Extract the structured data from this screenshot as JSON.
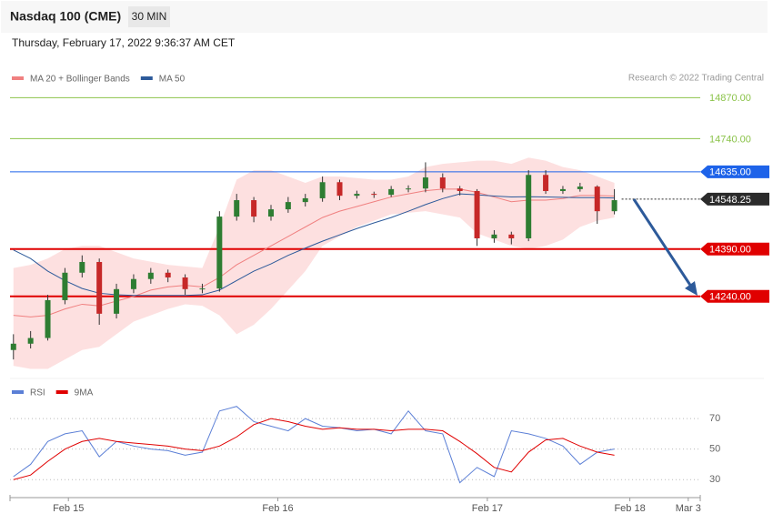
{
  "chart_data": [
    {
      "type": "candlestick",
      "title": "Nasdaq 100 (CME)",
      "interval": "30 MIN",
      "subtitle": "Thursday, February 17, 2022 9:36:37 AM CET",
      "credit": "Research © 2022 Trading Central",
      "up_color": "#2e7d32",
      "down_color": "#c62828",
      "xlim": [
        -0.2,
        40
      ],
      "ylim": [
        14000,
        14920
      ],
      "x": [
        0,
        1,
        2,
        3,
        4,
        5,
        6,
        7,
        8,
        9,
        10,
        11,
        12,
        13,
        14,
        15,
        16,
        17,
        18,
        19,
        20,
        21,
        22,
        23,
        24,
        25,
        26,
        27,
        28,
        29,
        30,
        31,
        32,
        33,
        34,
        35
      ],
      "ohlc": [
        [
          14070,
          14120,
          14040,
          14090
        ],
        [
          14090,
          14130,
          14075,
          14108
        ],
        [
          14108,
          14245,
          14100,
          14228
        ],
        [
          14228,
          14330,
          14215,
          14315
        ],
        [
          14315,
          14370,
          14300,
          14349
        ],
        [
          14349,
          14360,
          14150,
          14185
        ],
        [
          14185,
          14280,
          14170,
          14263
        ],
        [
          14263,
          14310,
          14250,
          14295
        ],
        [
          14295,
          14330,
          14280,
          14315
        ],
        [
          14315,
          14325,
          14285,
          14300
        ],
        [
          14300,
          14310,
          14245,
          14263
        ],
        [
          14263,
          14280,
          14250,
          14265
        ],
        [
          14265,
          14510,
          14255,
          14493
        ],
        [
          14493,
          14565,
          14480,
          14545
        ],
        [
          14545,
          14555,
          14475,
          14493
        ],
        [
          14493,
          14530,
          14480,
          14516
        ],
        [
          14516,
          14555,
          14505,
          14539
        ],
        [
          14539,
          14565,
          14525,
          14551
        ],
        [
          14551,
          14620,
          14540,
          14602
        ],
        [
          14602,
          14610,
          14545,
          14559
        ],
        [
          14559,
          14575,
          14550,
          14565
        ],
        [
          14565,
          14572,
          14552,
          14562
        ],
        [
          14562,
          14590,
          14555,
          14580
        ],
        [
          14580,
          14592,
          14570,
          14582
        ],
        [
          14582,
          14665,
          14570,
          14617
        ],
        [
          14617,
          14630,
          14570,
          14582
        ],
        [
          14582,
          14590,
          14560,
          14574
        ],
        [
          14574,
          14580,
          14400,
          14424
        ],
        [
          14424,
          14450,
          14410,
          14436
        ],
        [
          14436,
          14445,
          14405,
          14424
        ],
        [
          14424,
          14640,
          14415,
          14625
        ],
        [
          14625,
          14640,
          14565,
          14574
        ],
        [
          14574,
          14590,
          14565,
          14580
        ],
        [
          14580,
          14600,
          14572,
          14588
        ],
        [
          14588,
          14592,
          14470,
          14510
        ],
        [
          14510,
          14580,
          14500,
          14545
        ]
      ],
      "series": [
        {
          "name": "MA 20 + Bollinger Bands",
          "color": "#f08080",
          "band_color": "#fde0e0",
          "values": [
            14180,
            14175,
            14180,
            14200,
            14215,
            14210,
            14225,
            14240,
            14260,
            14270,
            14275,
            14270,
            14300,
            14340,
            14370,
            14400,
            14430,
            14460,
            14490,
            14510,
            14525,
            14540,
            14555,
            14565,
            14575,
            14580,
            14580,
            14570,
            14555,
            14540,
            14545,
            14545,
            14550,
            14560,
            14560,
            14558
          ],
          "upper": [
            14330,
            14340,
            14360,
            14390,
            14400,
            14400,
            14380,
            14360,
            14350,
            14340,
            14335,
            14330,
            14460,
            14610,
            14640,
            14640,
            14620,
            14600,
            14620,
            14620,
            14615,
            14610,
            14610,
            14620,
            14650,
            14660,
            14665,
            14670,
            14670,
            14660,
            14680,
            14670,
            14650,
            14640,
            14620,
            14600
          ],
          "lower": [
            14020,
            14010,
            14010,
            14040,
            14070,
            14080,
            14120,
            14160,
            14180,
            14200,
            14215,
            14210,
            14180,
            14120,
            14150,
            14200,
            14260,
            14320,
            14400,
            14430,
            14460,
            14480,
            14500,
            14505,
            14510,
            14500,
            14490,
            14440,
            14420,
            14400,
            14390,
            14400,
            14420,
            14460,
            14480,
            14490
          ]
        },
        {
          "name": "MA 50",
          "color": "#2d5a9a",
          "values": [
            14387,
            14360,
            14320,
            14290,
            14265,
            14250,
            14245,
            14243,
            14243,
            14243,
            14243,
            14245,
            14260,
            14290,
            14320,
            14343,
            14370,
            14393,
            14415,
            14435,
            14455,
            14473,
            14490,
            14510,
            14531,
            14550,
            14565,
            14562,
            14558,
            14555,
            14556,
            14555,
            14554,
            14553,
            14553,
            14552
          ]
        }
      ],
      "levels": [
        {
          "value": 14870,
          "label": "14870.00",
          "color": "#8bc34a",
          "boxed": false,
          "style": "solid",
          "width": 1
        },
        {
          "value": 14740,
          "label": "14740.00",
          "color": "#8bc34a",
          "boxed": false,
          "style": "solid",
          "width": 1
        },
        {
          "value": 14635,
          "label": "14635.00",
          "color": "#1e63e9",
          "boxed": true,
          "style": "solid",
          "width": 1
        },
        {
          "value": 14548.25,
          "label": "14548.25",
          "color": "#2b2b2b",
          "boxed": true,
          "style": "dotted",
          "width": 1
        },
        {
          "value": 14390,
          "label": "14390.00",
          "color": "#e00000",
          "boxed": true,
          "style": "solid",
          "width": 2
        },
        {
          "value": 14240,
          "label": "14240.00",
          "color": "#e00000",
          "boxed": true,
          "style": "solid",
          "width": 2
        }
      ]
    },
    {
      "type": "line",
      "xlim": [
        -0.2,
        40
      ],
      "ylim": [
        20,
        82
      ],
      "x": [
        0,
        1,
        2,
        3,
        4,
        5,
        6,
        7,
        8,
        9,
        10,
        11,
        12,
        13,
        14,
        15,
        16,
        17,
        18,
        19,
        20,
        21,
        22,
        23,
        24,
        25,
        26,
        27,
        28,
        29,
        30,
        31,
        32,
        33,
        34,
        35
      ],
      "yticks": [
        30,
        50,
        70
      ],
      "xticks": [
        {
          "value": 3.2,
          "label": "Feb 15"
        },
        {
          "value": 15.4,
          "label": "Feb 16"
        },
        {
          "value": 27.6,
          "label": "Feb 17"
        },
        {
          "value": 35.9,
          "label": "Feb 18"
        },
        {
          "value": 39.3,
          "label": "Mar 3"
        }
      ],
      "series": [
        {
          "name": "RSI",
          "color": "#5b7fd6",
          "values": [
            32,
            40,
            55,
            60,
            62,
            45,
            55,
            52,
            50,
            49,
            46,
            48,
            75,
            78,
            68,
            65,
            62,
            70,
            65,
            64,
            62,
            63,
            60,
            75,
            62,
            60,
            28,
            38,
            32,
            62,
            60,
            57,
            52,
            40,
            48,
            50
          ]
        },
        {
          "name": "9MA",
          "color": "#e00000",
          "values": [
            30,
            33,
            42,
            50,
            55,
            57,
            55,
            54,
            53,
            52,
            50,
            49,
            52,
            58,
            66,
            70,
            68,
            65,
            63,
            64,
            63,
            63,
            62,
            63,
            63,
            62,
            55,
            47,
            38,
            35,
            48,
            56,
            57,
            52,
            48,
            46
          ]
        }
      ]
    }
  ]
}
